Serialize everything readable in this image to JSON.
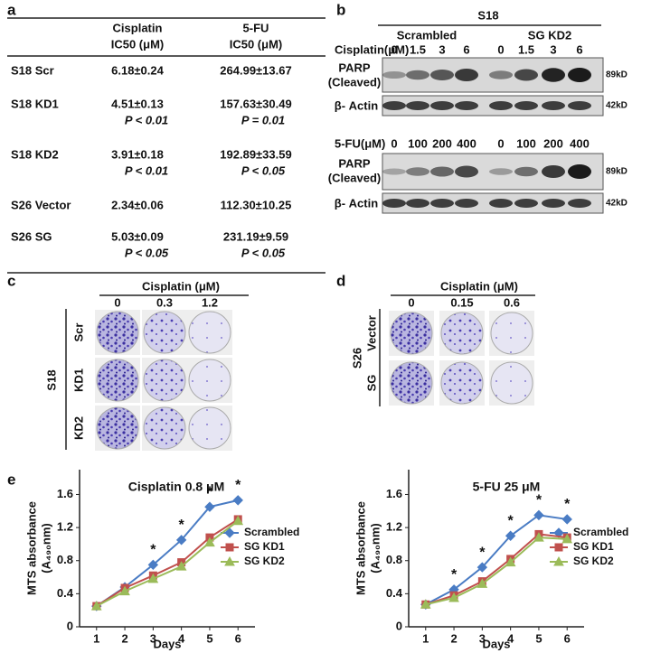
{
  "panels": {
    "a": "a",
    "b": "b",
    "c": "c",
    "d": "d",
    "e": "e"
  },
  "table": {
    "header": [
      "Cisplatin",
      "IC50 (μM)",
      "5-FU",
      "IC50 (μM)"
    ],
    "rows": [
      [
        "S18 Scr",
        "6.18±0.24",
        "",
        "264.99±13.67",
        ""
      ],
      [
        "S18 KD1",
        "4.51±0.13",
        "P < 0.01",
        "157.63±30.49",
        "P = 0.01"
      ],
      [
        "S18 KD2",
        "3.91±0.18",
        "P < 0.01",
        "192.89±33.59",
        "P < 0.05"
      ],
      [
        "S26 Vector",
        "2.34±0.06",
        "",
        "112.30±10.25",
        ""
      ],
      [
        "S26 SG",
        "5.03±0.09",
        "P < 0.05",
        "231.19±9.59",
        "P < 0.05"
      ]
    ]
  },
  "blot": {
    "cell": "S18",
    "groups": [
      "Scrambled",
      "SG KD2"
    ],
    "top": {
      "treatment": "Cisplatin(μM)",
      "doses": [
        "0",
        "1.5",
        "3",
        "6",
        "0",
        "1.5",
        "3",
        "6"
      ]
    },
    "bottom": {
      "treatment": "5-FU(μM)",
      "doses": [
        "0",
        "100",
        "200",
        "400",
        "0",
        "100",
        "200",
        "400"
      ]
    },
    "parp": [
      "PARP",
      "(Cleaved)"
    ],
    "actin": "β- Actin",
    "sizes": [
      "89kD",
      "42kD"
    ]
  },
  "colony_c": {
    "treatment": "Cisplatin (μM)",
    "doses": [
      "0",
      "0.3",
      "1.2"
    ],
    "cell": "S18",
    "rows": [
      "Scr",
      "KD1",
      "KD2"
    ]
  },
  "colony_d": {
    "treatment": "Cisplatin (μM)",
    "doses": [
      "0",
      "0.15",
      "0.6"
    ],
    "cell": "S26",
    "rows": [
      "Vector",
      "SG"
    ]
  },
  "chart_data": [
    {
      "type": "line",
      "title": "Cisplatin 0.8 μM",
      "x_label": "Days",
      "y_label": [
        "MTS absorbance",
        "(A₄₉₀nm)"
      ],
      "x": [
        1,
        2,
        3,
        4,
        5,
        6
      ],
      "xlim": [
        0.4,
        6.6
      ],
      "xticks": [
        1,
        2,
        3,
        4,
        5,
        6
      ],
      "ylim": [
        0,
        1.9
      ],
      "yticks": [
        0,
        0.4,
        0.8,
        1.2,
        1.6
      ],
      "legend": "right",
      "series": [
        {
          "name": "Scrambled",
          "color": "#4a7cc4",
          "marker": "diamond",
          "values": [
            0.25,
            0.48,
            0.75,
            1.05,
            1.45,
            1.53
          ]
        },
        {
          "name": "SG KD1",
          "color": "#c0504d",
          "marker": "square",
          "values": [
            0.25,
            0.47,
            0.62,
            0.78,
            1.08,
            1.3
          ]
        },
        {
          "name": "SG KD2",
          "color": "#9bbb59",
          "marker": "triangle",
          "values": [
            0.25,
            0.43,
            0.58,
            0.73,
            1.02,
            1.28
          ]
        }
      ],
      "annotations": [
        {
          "x": 3,
          "text": "*"
        },
        {
          "x": 4,
          "text": "*"
        },
        {
          "x": 5,
          "text": "*"
        },
        {
          "x": 6,
          "text": "*"
        }
      ]
    },
    {
      "type": "line",
      "title": "5-FU 25 μM",
      "x_label": "Days",
      "y_label": [
        "MTS absorbance",
        "(A₄₉₀nm)"
      ],
      "x": [
        1,
        2,
        3,
        4,
        5,
        6
      ],
      "xlim": [
        0.4,
        6.6
      ],
      "xticks": [
        1,
        2,
        3,
        4,
        5,
        6
      ],
      "ylim": [
        0,
        1.9
      ],
      "yticks": [
        0,
        0.4,
        0.8,
        1.2,
        1.6
      ],
      "legend": "right",
      "series": [
        {
          "name": "Scrambled",
          "color": "#4a7cc4",
          "marker": "diamond",
          "values": [
            0.27,
            0.45,
            0.72,
            1.1,
            1.35,
            1.3
          ]
        },
        {
          "name": "SG KD1",
          "color": "#c0504d",
          "marker": "square",
          "values": [
            0.27,
            0.38,
            0.55,
            0.82,
            1.12,
            1.08
          ]
        },
        {
          "name": "SG KD2",
          "color": "#9bbb59",
          "marker": "triangle",
          "values": [
            0.27,
            0.35,
            0.52,
            0.78,
            1.08,
            1.06
          ]
        }
      ],
      "annotations": [
        {
          "x": 2,
          "text": "*"
        },
        {
          "x": 3,
          "text": "*"
        },
        {
          "x": 4,
          "text": "*"
        },
        {
          "x": 5,
          "text": "*"
        },
        {
          "x": 6,
          "text": "*"
        }
      ]
    }
  ]
}
